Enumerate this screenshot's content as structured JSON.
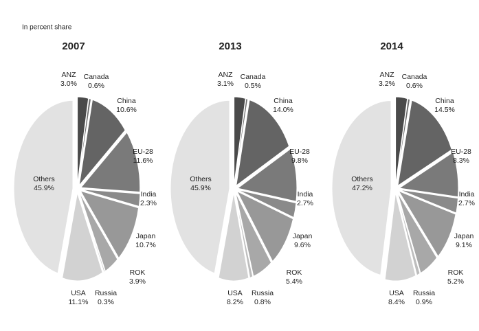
{
  "subtitle": "In percent share",
  "chart_data": [
    {
      "type": "pie",
      "title": "2007",
      "categories": [
        "ANZ",
        "Canada",
        "China",
        "EU-28",
        "India",
        "Japan",
        "ROK",
        "Russia",
        "USA",
        "Others"
      ],
      "values": [
        3.0,
        0.6,
        10.6,
        11.6,
        2.3,
        10.7,
        3.9,
        0.3,
        11.1,
        45.9
      ],
      "value_labels": [
        "3.0%",
        "0.6%",
        "10.6%",
        "11.6%",
        "2.3%",
        "10.7%",
        "3.9%",
        "0.3%",
        "11.1%",
        "45.9%"
      ],
      "colors": [
        "#4a4a4a",
        "#6e6e6e",
        "#646464",
        "#7a7a7a",
        "#8a8a8a",
        "#989898",
        "#a8a8a8",
        "#bdbdbd",
        "#d2d2d2",
        "#e2e2e2"
      ]
    },
    {
      "type": "pie",
      "title": "2013",
      "categories": [
        "ANZ",
        "Canada",
        "China",
        "EU-28",
        "India",
        "Japan",
        "ROK",
        "Russia",
        "USA",
        "Others"
      ],
      "values": [
        3.1,
        0.5,
        14.0,
        9.8,
        2.7,
        9.6,
        5.4,
        0.8,
        8.2,
        45.9
      ],
      "value_labels": [
        "3.1%",
        "0.5%",
        "14.0%",
        "9.8%",
        "2.7%",
        "9.6%",
        "5.4%",
        "0.8%",
        "8.2%",
        "45.9%"
      ],
      "colors": [
        "#4a4a4a",
        "#6e6e6e",
        "#646464",
        "#7a7a7a",
        "#8a8a8a",
        "#989898",
        "#a8a8a8",
        "#bdbdbd",
        "#d2d2d2",
        "#e2e2e2"
      ]
    },
    {
      "type": "pie",
      "title": "2014",
      "categories": [
        "ANZ",
        "Canada",
        "China",
        "EU-28",
        "India",
        "Japan",
        "ROK",
        "Russia",
        "USA",
        "Others"
      ],
      "values": [
        3.2,
        0.6,
        14.5,
        8.3,
        2.7,
        9.1,
        5.2,
        0.9,
        8.4,
        47.2
      ],
      "value_labels": [
        "3.2%",
        "0.6%",
        "14.5%",
        "8.3%",
        "2.7%",
        "9.1%",
        "5.2%",
        "0.9%",
        "8.4%",
        "47.2%"
      ],
      "colors": [
        "#4a4a4a",
        "#6e6e6e",
        "#646464",
        "#7a7a7a",
        "#8a8a8a",
        "#989898",
        "#a8a8a8",
        "#bdbdbd",
        "#d2d2d2",
        "#e2e2e2"
      ]
    }
  ]
}
